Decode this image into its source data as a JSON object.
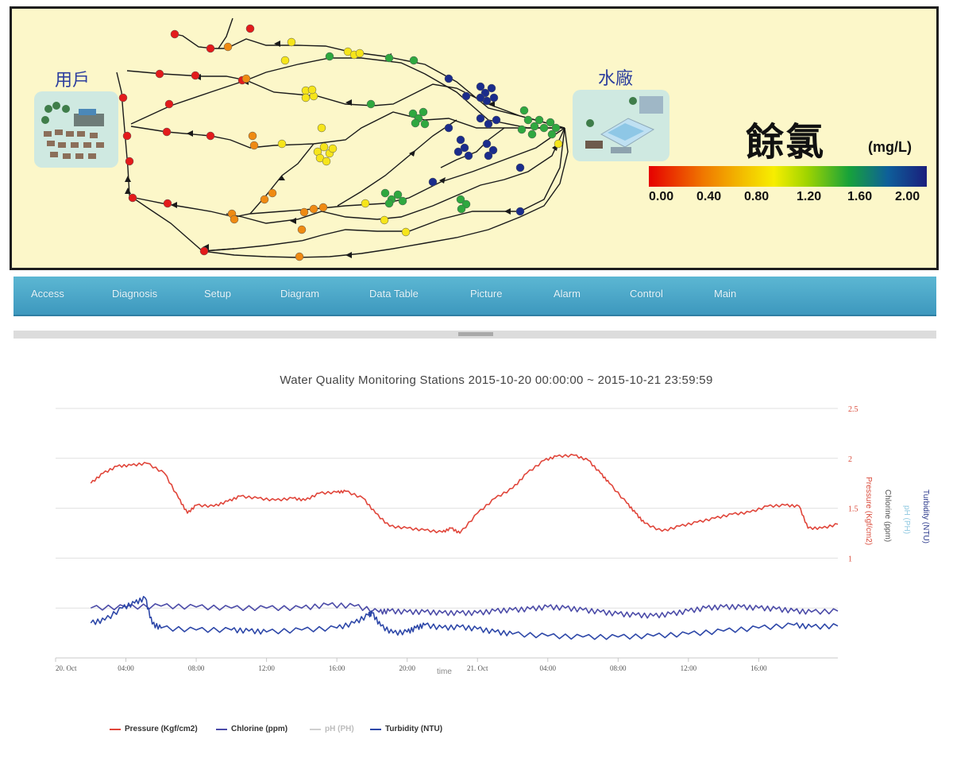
{
  "map": {
    "user_label": "用戶",
    "plant_label": "水廠",
    "legend": {
      "title": "餘氯",
      "unit": "(mg/L)",
      "ticks": [
        "0.00",
        "0.40",
        "0.80",
        "1.20",
        "1.60",
        "2.00"
      ],
      "colors": [
        "#e60000",
        "#f07a00",
        "#f3c300",
        "#f7ee00",
        "#9fd400",
        "#17a23a",
        "#0e5f9a",
        "#1a1e7c"
      ]
    }
  },
  "nav": {
    "items": [
      "Access",
      "Diagnosis",
      "Setup",
      "Diagram",
      "Data Table",
      "Picture",
      "Alarm",
      "Control",
      "Main"
    ]
  },
  "chart_data": {
    "type": "line",
    "title": "Water Quality Monitoring Stations 2015-10-20 00:00:00 ~ 2015-10-21 23:59:59",
    "xlabel": "time",
    "x_ticks": [
      "20. Oct",
      "04:00",
      "08:00",
      "12:00",
      "16:00",
      "20:00",
      "21. Oct",
      "04:00",
      "08:00",
      "12:00",
      "16:00"
    ],
    "x_hours": [
      0,
      4,
      8,
      12,
      16,
      20,
      24,
      28,
      32,
      36,
      40
    ],
    "xlim": [
      0,
      44.5
    ],
    "right_axis": {
      "ticks": [
        "2.5",
        "2",
        "1.5",
        "1"
      ],
      "tick_values": [
        2.5,
        2,
        1.5,
        1
      ],
      "ylim": [
        0,
        2.5
      ],
      "titles": [
        "Pressure (Kgf/cm2)",
        "Chlorine (ppm)",
        "pH (PH)",
        "Turbidity (NTU)"
      ],
      "title_colors": [
        "#d94a3a",
        "#555555",
        "#8fc8e0",
        "#2c3a8c"
      ]
    },
    "grid": true,
    "legend_position": "bottom",
    "series": [
      {
        "name": "Pressure (Kgf/cm2)",
        "color": "#e0453a",
        "points": [
          [
            2,
            1.75
          ],
          [
            2.7,
            1.85
          ],
          [
            3.5,
            1.92
          ],
          [
            4.3,
            1.93
          ],
          [
            5.2,
            1.95
          ],
          [
            6.2,
            1.85
          ],
          [
            7,
            1.6
          ],
          [
            7.5,
            1.45
          ],
          [
            8,
            1.53
          ],
          [
            9,
            1.52
          ],
          [
            9.8,
            1.57
          ],
          [
            10.5,
            1.62
          ],
          [
            11.5,
            1.6
          ],
          [
            12.5,
            1.58
          ],
          [
            13.5,
            1.6
          ],
          [
            14.2,
            1.58
          ],
          [
            15,
            1.65
          ],
          [
            16,
            1.66
          ],
          [
            16.5,
            1.67
          ],
          [
            17.5,
            1.6
          ],
          [
            18.2,
            1.45
          ],
          [
            19,
            1.32
          ],
          [
            20,
            1.3
          ],
          [
            21,
            1.28
          ],
          [
            22,
            1.26
          ],
          [
            22.5,
            1.3
          ],
          [
            23,
            1.25
          ],
          [
            24,
            1.45
          ],
          [
            25,
            1.6
          ],
          [
            26,
            1.7
          ],
          [
            26.8,
            1.85
          ],
          [
            27.8,
            1.98
          ],
          [
            28.5,
            2.02
          ],
          [
            29.5,
            2.03
          ],
          [
            30.3,
            1.98
          ],
          [
            31,
            1.85
          ],
          [
            31.5,
            1.75
          ],
          [
            32.5,
            1.55
          ],
          [
            33,
            1.45
          ],
          [
            33.5,
            1.35
          ],
          [
            34.5,
            1.27
          ],
          [
            35.5,
            1.32
          ],
          [
            36.5,
            1.36
          ],
          [
            37.5,
            1.4
          ],
          [
            38.5,
            1.44
          ],
          [
            39.5,
            1.46
          ],
          [
            40.5,
            1.52
          ],
          [
            41.5,
            1.53
          ],
          [
            42.3,
            1.52
          ],
          [
            42.8,
            1.3
          ],
          [
            43.6,
            1.3
          ],
          [
            44.5,
            1.34
          ]
        ]
      },
      {
        "name": "Chlorine (ppm)",
        "color": "#4b4ba8",
        "points": [
          [
            2,
            0.5
          ],
          [
            4,
            0.51
          ],
          [
            6,
            0.52
          ],
          [
            8,
            0.51
          ],
          [
            10,
            0.5
          ],
          [
            12,
            0.5
          ],
          [
            14,
            0.5
          ],
          [
            15.5,
            0.53
          ],
          [
            17,
            0.52
          ],
          [
            18.4,
            0.46
          ],
          [
            19,
            0.47
          ],
          [
            20,
            0.46
          ],
          [
            21,
            0.46
          ],
          [
            22,
            0.45
          ],
          [
            23,
            0.45
          ],
          [
            24,
            0.45
          ],
          [
            25,
            0.47
          ],
          [
            26,
            0.48
          ],
          [
            27,
            0.49
          ],
          [
            28,
            0.51
          ],
          [
            29,
            0.5
          ],
          [
            30,
            0.48
          ],
          [
            31,
            0.46
          ],
          [
            32,
            0.44
          ],
          [
            33,
            0.43
          ],
          [
            34,
            0.42
          ],
          [
            35,
            0.44
          ],
          [
            36,
            0.47
          ],
          [
            37,
            0.5
          ],
          [
            38,
            0.51
          ],
          [
            39,
            0.51
          ],
          [
            40,
            0.5
          ],
          [
            41,
            0.49
          ],
          [
            42,
            0.47
          ],
          [
            43,
            0.46
          ],
          [
            44.5,
            0.47
          ]
        ]
      },
      {
        "name": "pH (PH)",
        "color": "#bfbfbf",
        "points": []
      },
      {
        "name": "Turbidity (NTU)",
        "color": "#2d47a8",
        "points": [
          [
            2,
            0.35
          ],
          [
            2.8,
            0.38
          ],
          [
            3.8,
            0.5
          ],
          [
            4.5,
            0.55
          ],
          [
            5.1,
            0.6
          ],
          [
            5.5,
            0.34
          ],
          [
            6,
            0.3
          ],
          [
            8,
            0.28
          ],
          [
            10,
            0.28
          ],
          [
            11,
            0.27
          ],
          [
            12,
            0.26
          ],
          [
            14,
            0.28
          ],
          [
            16,
            0.3
          ],
          [
            17,
            0.35
          ],
          [
            17.8,
            0.43
          ],
          [
            18,
            0.45
          ],
          [
            18.5,
            0.32
          ],
          [
            19.2,
            0.25
          ],
          [
            20,
            0.26
          ],
          [
            20.5,
            0.3
          ],
          [
            21,
            0.33
          ],
          [
            22,
            0.3
          ],
          [
            23,
            0.31
          ],
          [
            24,
            0.29
          ],
          [
            25,
            0.26
          ],
          [
            26,
            0.24
          ],
          [
            28,
            0.22
          ],
          [
            30,
            0.21
          ],
          [
            32,
            0.21
          ],
          [
            34,
            0.22
          ],
          [
            36,
            0.24
          ],
          [
            38,
            0.27
          ],
          [
            40,
            0.3
          ],
          [
            42,
            0.33
          ],
          [
            43,
            0.31
          ],
          [
            44.5,
            0.32
          ]
        ]
      }
    ]
  }
}
